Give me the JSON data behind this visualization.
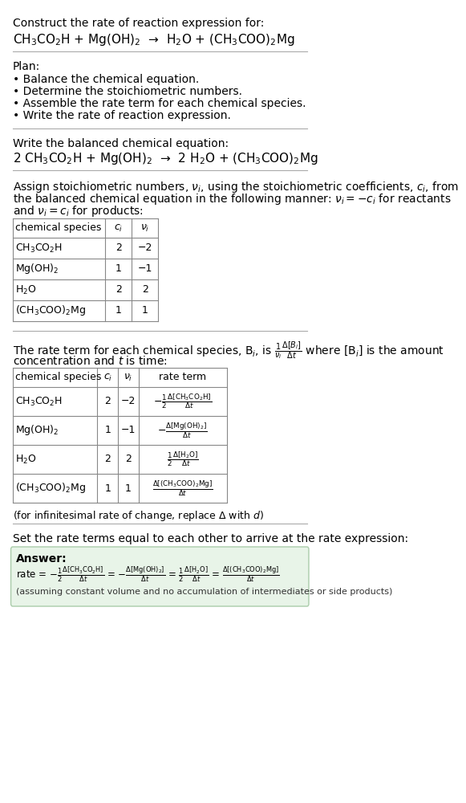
{
  "bg_color": "#ffffff",
  "title_line1": "Construct the rate of reaction expression for:",
  "reaction_unbalanced": "CH$_3$CO$_2$H + Mg(OH)$_2$  →  H$_2$O + (CH$_3$COO)$_2$Mg",
  "plan_header": "Plan:",
  "plan_items": [
    "• Balance the chemical equation.",
    "• Determine the stoichiometric numbers.",
    "• Assemble the rate term for each chemical species.",
    "• Write the rate of reaction expression."
  ],
  "balanced_header": "Write the balanced chemical equation:",
  "reaction_balanced": "2 CH$_3$CO$_2$H + Mg(OH)$_2$  →  2 H$_2$O + (CH$_3$COO)$_2$Mg",
  "stoich_intro_1": "Assign stoichiometric numbers, $\\nu_i$, using the stoichiometric coefficients, $c_i$, from",
  "stoich_intro_2": "the balanced chemical equation in the following manner: $\\nu_i = -c_i$ for reactants",
  "stoich_intro_3": "and $\\nu_i = c_i$ for products:",
  "table1_headers": [
    "chemical species",
    "$c_i$",
    "$\\nu_i$"
  ],
  "table1_rows": [
    [
      "CH$_3$CO$_2$H",
      "2",
      "−2"
    ],
    [
      "Mg(OH)$_2$",
      "1",
      "−1"
    ],
    [
      "H$_2$O",
      "2",
      "2"
    ],
    [
      "(CH$_3$COO)$_2$Mg",
      "1",
      "1"
    ]
  ],
  "rate_intro1": "The rate term for each chemical species, B$_i$, is $\\frac{1}{\\nu_i}\\frac{\\Delta[B_i]}{\\Delta t}$ where [B$_i$] is the amount",
  "rate_intro2": "concentration and $t$ is time:",
  "table2_headers": [
    "chemical species",
    "$c_i$",
    "$\\nu_i$",
    "rate term"
  ],
  "table2_rows": [
    [
      "CH$_3$CO$_2$H",
      "2",
      "−2",
      "$-\\frac{1}{2}\\frac{\\Delta[\\mathrm{CH_3CO_2H}]}{\\Delta t}$"
    ],
    [
      "Mg(OH)$_2$",
      "1",
      "−1",
      "$-\\frac{\\Delta[\\mathrm{Mg(OH)_2}]}{\\Delta t}$"
    ],
    [
      "H$_2$O",
      "2",
      "2",
      "$\\frac{1}{2}\\frac{\\Delta[\\mathrm{H_2O}]}{\\Delta t}$"
    ],
    [
      "(CH$_3$COO)$_2$Mg",
      "1",
      "1",
      "$\\frac{\\Delta[\\mathrm{(CH_3COO)_2Mg}]}{\\Delta t}$"
    ]
  ],
  "infinitesimal_note": "(for infinitesimal rate of change, replace Δ with $d$)",
  "set_equal_text": "Set the rate terms equal to each other to arrive at the rate expression:",
  "answer_label": "Answer:",
  "answer_box_color": "#e8f4e8",
  "answer_rate": "rate = $-\\frac{1}{2}\\frac{\\Delta[\\mathrm{CH_3CO_2H}]}{\\Delta t}$ = $-\\frac{\\Delta[\\mathrm{Mg(OH)_2}]}{\\Delta t}$ = $\\frac{1}{2}\\frac{\\Delta[\\mathrm{H_2O}]}{\\Delta t}$ = $\\frac{\\Delta[\\mathrm{(CH_3COO)_2Mg}]}{\\Delta t}$",
  "answer_note": "(assuming constant volume and no accumulation of intermediates or side products)"
}
